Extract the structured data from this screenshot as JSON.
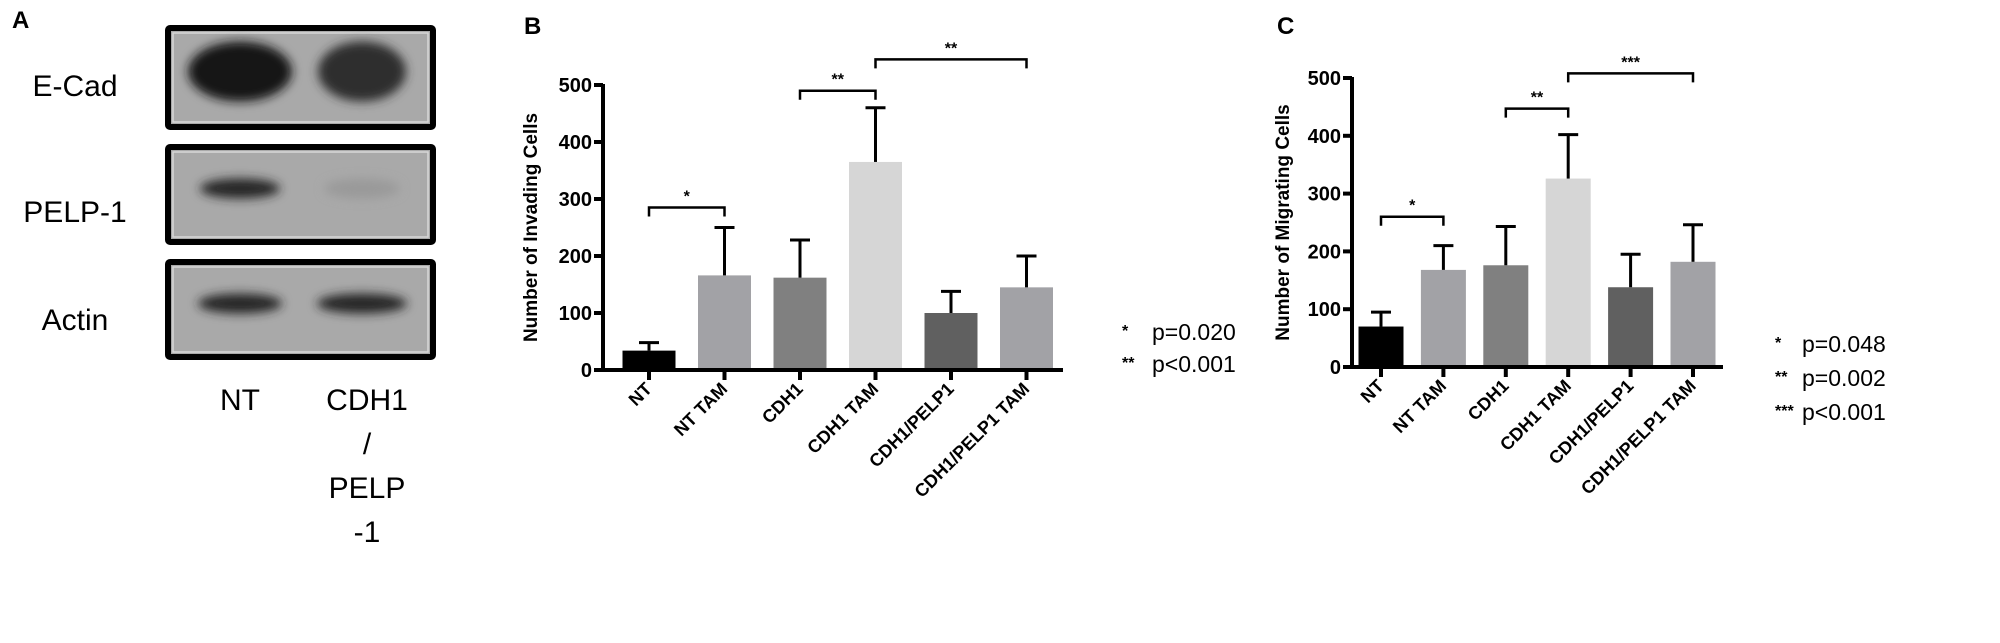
{
  "panel_a": {
    "label": "A",
    "rows": [
      "E-Cad",
      "PELP-1",
      "Actin"
    ],
    "lanes": [
      "NT",
      "CDH1 / PELP -1"
    ],
    "lane_lines": [
      [
        "NT"
      ],
      [
        "CDH1",
        "/",
        "PELP",
        "-1"
      ]
    ],
    "band_intensity": [
      [
        1.0,
        0.85
      ],
      [
        0.9,
        0.1
      ],
      [
        0.9,
        0.9
      ]
    ]
  },
  "chart_data": [
    {
      "panel_label": "B",
      "type": "bar",
      "ylabel": "Number of Invading Cells",
      "categories": [
        "NT",
        "NT TAM",
        "CDH1",
        "CDH1 TAM",
        "CDH1/PELP1",
        "CDH1/PELP1 TAM"
      ],
      "values": [
        34,
        166,
        162,
        365,
        100,
        145
      ],
      "errors": [
        14,
        84,
        66,
        95,
        38,
        55
      ],
      "colors": [
        "#000000",
        "#a2a2a6",
        "#808080",
        "#d6d6d6",
        "#606060",
        "#a2a2a6"
      ],
      "ylim": [
        0,
        500
      ],
      "yticks": [
        0,
        100,
        200,
        300,
        400,
        500
      ],
      "grid": false,
      "significance": [
        {
          "from": 0,
          "to": 1,
          "level": 285,
          "stars": "*"
        },
        {
          "from": 2,
          "to": 3,
          "level": 490,
          "stars": "**"
        },
        {
          "from": 3,
          "to": 5,
          "level": 545,
          "stars": "**"
        }
      ],
      "legend": [
        {
          "stars": "*",
          "text": "p=0.020"
        },
        {
          "stars": "**",
          "text": "p<0.001"
        }
      ]
    },
    {
      "panel_label": "C",
      "type": "bar",
      "ylabel": "Number of Migrating Cells",
      "categories": [
        "NT",
        "NT TAM",
        "CDH1",
        "CDH1 TAM",
        "CDH1/PELP1",
        "CDH1/PELP1 TAM"
      ],
      "values": [
        70,
        168,
        176,
        326,
        138,
        182
      ],
      "errors": [
        25,
        42,
        67,
        76,
        57,
        64
      ],
      "colors": [
        "#000000",
        "#a2a2a6",
        "#808080",
        "#d6d6d6",
        "#606060",
        "#a2a2a6"
      ],
      "ylim": [
        0,
        500
      ],
      "yticks": [
        0,
        100,
        200,
        300,
        400,
        500
      ],
      "grid": false,
      "significance": [
        {
          "from": 0,
          "to": 1,
          "level": 260,
          "stars": "*"
        },
        {
          "from": 2,
          "to": 3,
          "level": 447,
          "stars": "**"
        },
        {
          "from": 3,
          "to": 5,
          "level": 508,
          "stars": "***"
        }
      ],
      "legend": [
        {
          "stars": "*",
          "text": "p=0.048"
        },
        {
          "stars": "**",
          "text": "p=0.002"
        },
        {
          "stars": "***",
          "text": "p<0.001"
        }
      ]
    }
  ]
}
